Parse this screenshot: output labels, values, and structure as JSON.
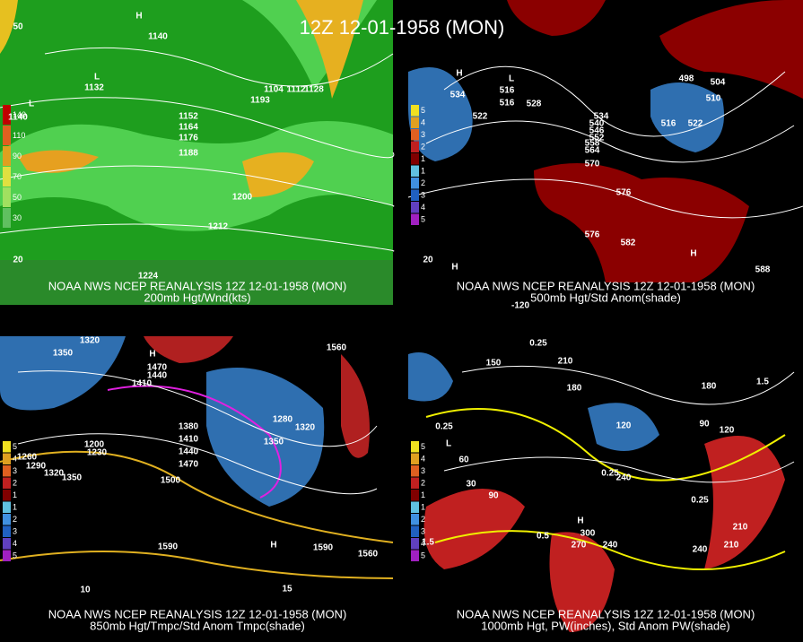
{
  "title": "12Z 12-01-1958 (MON)",
  "panels": [
    {
      "source": "NOAA NWS NCEP REANALYSIS 12Z 12-01-1958 (MON)",
      "caption": "200mb Hgt/Wnd(kts)",
      "legend": [
        "140",
        "110",
        "90",
        "70",
        "50",
        "30"
      ],
      "labels": [
        "1140",
        "1132",
        "1104",
        "1112",
        "1128",
        "1152",
        "1164",
        "1176",
        "1188",
        "1200",
        "1212",
        "1224",
        "1193",
        "1140",
        "50",
        "20",
        "H",
        "L",
        "L"
      ]
    },
    {
      "source": "NOAA NWS NCEP REANALYSIS 12Z 12-01-1958 (MON)",
      "caption": "500mb Hgt/Std Anom(shade)",
      "legend": [
        "5",
        "4",
        "3",
        "2",
        "1",
        "1",
        "2",
        "3",
        "4",
        "5"
      ],
      "labels": [
        "534",
        "516",
        "516",
        "522",
        "528",
        "534",
        "540",
        "546",
        "552",
        "558",
        "564",
        "570",
        "576",
        "576",
        "582",
        "588",
        "516",
        "522",
        "504",
        "510",
        "498",
        "20",
        "-120",
        "H",
        "L",
        "H",
        "H"
      ]
    },
    {
      "source": "NOAA NWS NCEP REANALYSIS 12Z 12-01-1958 (MON)",
      "caption": "850mb Hgt/Tmpc/Std Anom Tmpc(shade)",
      "legend": [
        "5",
        "4",
        "3",
        "2",
        "1",
        "1",
        "2",
        "3",
        "4",
        "5"
      ],
      "labels": [
        "1320",
        "1350",
        "1410",
        "1440",
        "1470",
        "1380",
        "1410",
        "1440",
        "1470",
        "1500",
        "1350",
        "1290",
        "1260",
        "1230",
        "1200",
        "1320",
        "1350",
        "1590",
        "1560",
        "1560",
        "1590",
        "1280",
        "1320",
        "10",
        "15",
        "H",
        "H"
      ]
    },
    {
      "source": "NOAA NWS NCEP REANALYSIS 12Z 12-01-1958 (MON)",
      "caption": "1000mb Hgt, PW(inches), Std Anom PW(shade)",
      "legend": [
        "5",
        "4",
        "3",
        "2",
        "1",
        "1",
        "2",
        "3",
        "4",
        "5"
      ],
      "labels": [
        "150",
        "210",
        "180",
        "120",
        "90",
        "60",
        "30",
        "90",
        "120",
        "180",
        "240",
        "300",
        "270",
        "240",
        "210",
        "240",
        "210",
        "0.25",
        "0.25",
        "0.25",
        "0.25",
        "0.5",
        "1.5",
        "1.5",
        "H",
        "L"
      ]
    }
  ]
}
